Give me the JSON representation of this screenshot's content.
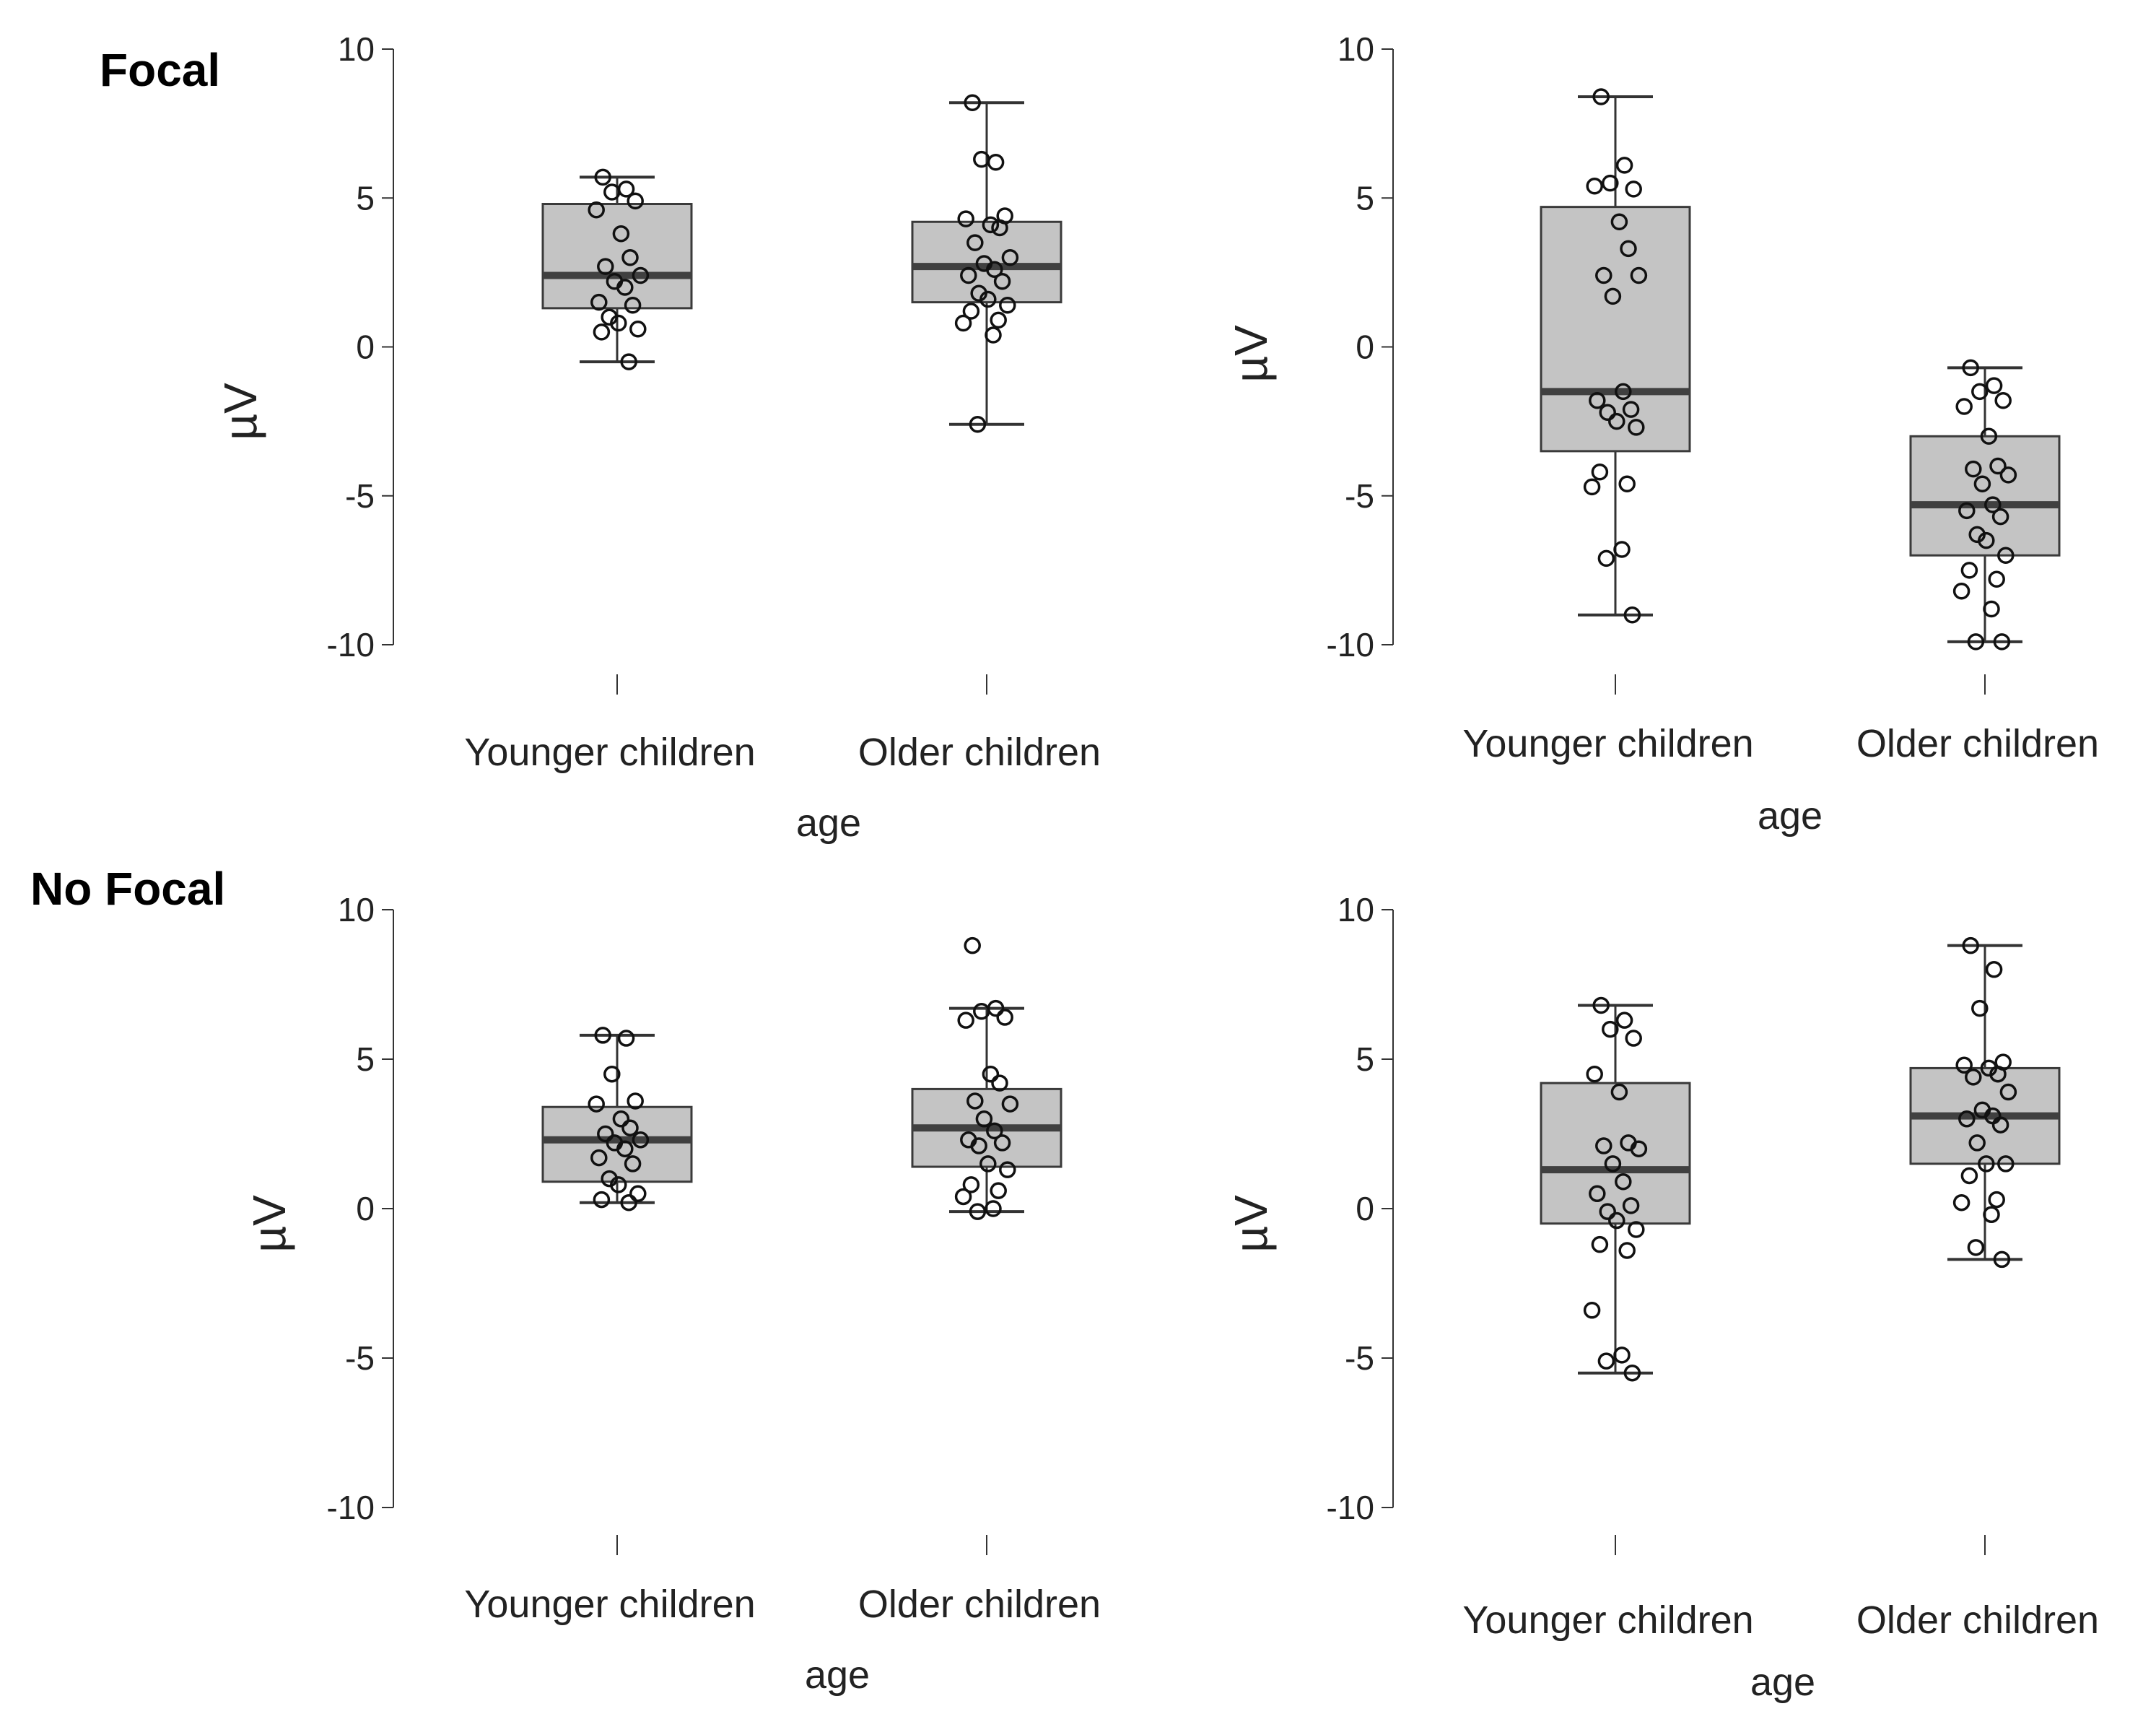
{
  "row_labels": {
    "top": "Focal",
    "bottom": "No Focal"
  },
  "colors": {
    "box_fill": "#c4c4c4",
    "box_stroke": "#3a3a3a",
    "median": "#404040",
    "whisker": "#333333",
    "point_stroke": "#111111",
    "axis": "#333333"
  },
  "chart_data": [
    {
      "type": "box",
      "ylabel": "µV",
      "xlabel": "age",
      "categories": [
        "Younger children",
        "Older children"
      ],
      "yticks": [
        10,
        5,
        0,
        -5,
        -10
      ],
      "ylim": [
        -10,
        10
      ],
      "boxes": [
        {
          "category": "Younger children",
          "whisker_low": -0.5,
          "q1": 1.3,
          "median": 2.4,
          "q3": 4.8,
          "whisker_high": 5.7,
          "points": [
            5.7,
            5.3,
            5.2,
            4.9,
            4.6,
            3.8,
            3.0,
            2.7,
            2.4,
            2.2,
            2.0,
            1.5,
            1.4,
            1.0,
            0.8,
            0.6,
            0.5,
            -0.5
          ]
        },
        {
          "category": "Older children",
          "whisker_low": -2.6,
          "q1": 1.5,
          "median": 2.7,
          "q3": 4.2,
          "whisker_high": 8.2,
          "points": [
            8.2,
            6.2,
            6.3,
            4.4,
            4.3,
            4.1,
            4.0,
            3.5,
            3.0,
            2.8,
            2.6,
            2.4,
            2.2,
            1.8,
            1.6,
            1.4,
            1.2,
            0.9,
            0.8,
            0.4,
            -2.6
          ]
        }
      ]
    },
    {
      "type": "box",
      "ylabel": "µV",
      "xlabel": "age",
      "categories": [
        "Younger children",
        "Older children"
      ],
      "yticks": [
        10,
        5,
        0,
        -5,
        -10
      ],
      "ylim": [
        -10,
        10
      ],
      "boxes": [
        {
          "category": "Younger children",
          "whisker_low": -9.0,
          "q1": -3.5,
          "median": -1.5,
          "q3": 4.7,
          "whisker_high": 8.4,
          "points": [
            8.4,
            6.1,
            5.5,
            5.3,
            5.4,
            4.2,
            3.3,
            2.4,
            2.4,
            1.7,
            -1.5,
            -1.8,
            -2.1,
            -2.2,
            -2.5,
            -2.7,
            -4.2,
            -4.6,
            -4.7,
            -6.8,
            -7.1,
            -9.0
          ]
        },
        {
          "category": "Older children",
          "whisker_low": -9.9,
          "q1": -7.0,
          "median": -5.3,
          "q3": -3.0,
          "whisker_high": -0.7,
          "points": [
            -0.7,
            -1.3,
            -1.5,
            -1.8,
            -2.0,
            -3.0,
            -4.0,
            -4.1,
            -4.3,
            -4.6,
            -5.3,
            -5.5,
            -5.7,
            -6.3,
            -6.5,
            -7.0,
            -7.5,
            -7.8,
            -8.2,
            -8.8,
            -9.9,
            -9.9
          ]
        }
      ]
    },
    {
      "type": "box",
      "ylabel": "µV",
      "xlabel": "age",
      "categories": [
        "Younger children",
        "Older children"
      ],
      "yticks": [
        10,
        5,
        0,
        -5,
        -10
      ],
      "ylim": [
        -10,
        10
      ],
      "boxes": [
        {
          "category": "Younger children",
          "whisker_low": 0.2,
          "q1": 0.9,
          "median": 2.3,
          "q3": 3.4,
          "whisker_high": 5.8,
          "points": [
            5.8,
            5.7,
            4.5,
            3.6,
            3.5,
            3.0,
            2.7,
            2.5,
            2.3,
            2.2,
            2.0,
            1.7,
            1.5,
            1.0,
            0.8,
            0.5,
            0.3,
            0.2
          ]
        },
        {
          "category": "Older children",
          "whisker_low": -0.1,
          "q1": 1.4,
          "median": 2.7,
          "q3": 4.0,
          "whisker_high": 6.7,
          "points": [
            8.8,
            6.7,
            6.6,
            6.4,
            6.3,
            4.5,
            4.2,
            3.6,
            3.5,
            3.0,
            2.6,
            2.3,
            2.2,
            2.1,
            1.5,
            1.3,
            0.8,
            0.6,
            0.4,
            0.0,
            -0.1
          ]
        }
      ]
    },
    {
      "type": "box",
      "ylabel": "µV",
      "xlabel": "age",
      "categories": [
        "Younger children",
        "Older children"
      ],
      "yticks": [
        10,
        5,
        0,
        -5,
        -10
      ],
      "ylim": [
        -10,
        10
      ],
      "boxes": [
        {
          "category": "Younger children",
          "whisker_low": -5.5,
          "q1": -0.5,
          "median": 1.3,
          "q3": 4.2,
          "whisker_high": 6.8,
          "points": [
            6.8,
            6.3,
            6.0,
            5.7,
            4.5,
            3.9,
            2.2,
            2.1,
            2.0,
            1.5,
            0.9,
            0.5,
            0.1,
            -0.1,
            -0.4,
            -0.7,
            -1.2,
            -1.4,
            -3.4,
            -4.9,
            -5.1,
            -5.5
          ]
        },
        {
          "category": "Older children",
          "whisker_low": -1.7,
          "q1": 1.5,
          "median": 3.1,
          "q3": 4.7,
          "whisker_high": 8.8,
          "points": [
            8.8,
            8.0,
            6.7,
            4.9,
            4.8,
            4.7,
            4.5,
            4.4,
            3.9,
            3.3,
            3.1,
            3.0,
            2.8,
            2.2,
            1.5,
            1.5,
            1.1,
            0.3,
            0.2,
            -0.2,
            -1.3,
            -1.7
          ]
        }
      ]
    }
  ]
}
